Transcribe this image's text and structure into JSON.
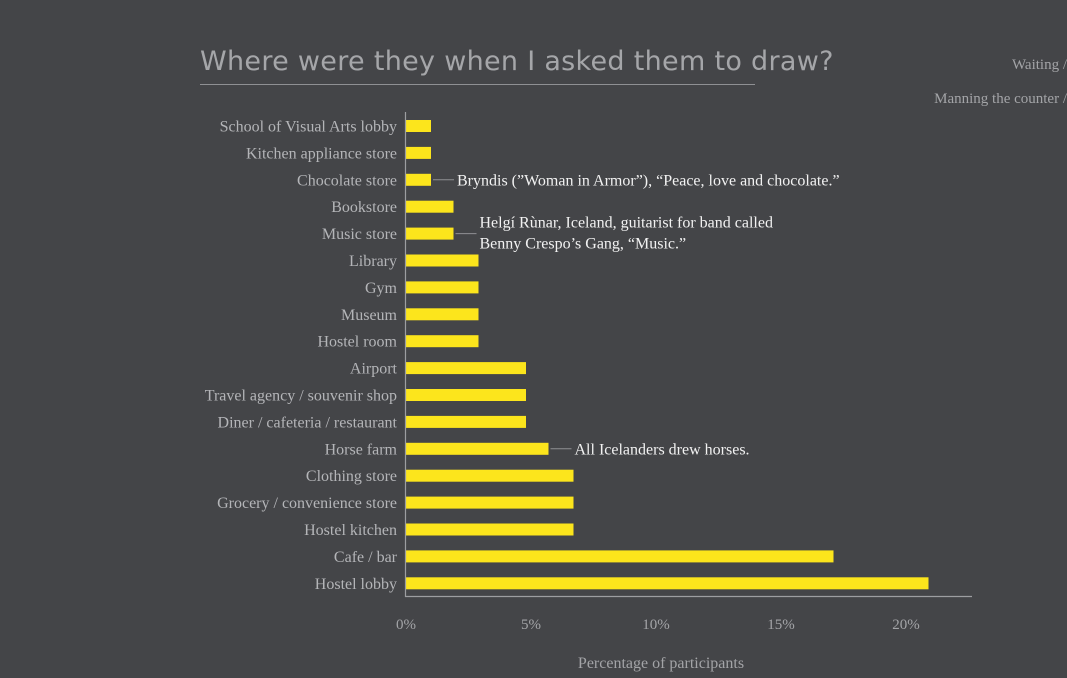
{
  "header": {
    "title": "Where were they when I asked them to draw?"
  },
  "legend_fragments": [
    "Waiting /",
    "Manning the counter /"
  ],
  "colors": {
    "background": "#444548",
    "bar": "#fce51c",
    "text": "#b4b5b8",
    "annotation": "#f2f2f2"
  },
  "chart_data": {
    "type": "bar",
    "orientation": "horizontal",
    "title": "Where were they when I asked them to draw?",
    "xlabel": "Percentage of participants",
    "ylabel": "",
    "xlim": [
      0,
      22.5
    ],
    "x_ticks": [
      "0%",
      "5%",
      "10%",
      "15%",
      "20%"
    ],
    "x_tick_values": [
      0,
      5,
      10,
      15,
      20
    ],
    "grid": false,
    "categories": [
      "School of Visual Arts lobby",
      "Kitchen appliance store",
      "Chocolate store",
      "Bookstore",
      "Music store",
      "Library",
      "Gym",
      "Museum",
      "Hostel room",
      "Airport",
      "Travel agency / souvenir shop",
      "Diner / cafeteria / restaurant",
      "Horse farm",
      "Clothing store",
      "Grocery / convenience store",
      "Hostel kitchen",
      "Cafe / bar",
      "Hostel lobby"
    ],
    "values": [
      1.0,
      1.0,
      1.0,
      1.9,
      1.9,
      2.9,
      2.9,
      2.9,
      2.9,
      4.8,
      4.8,
      4.8,
      5.7,
      6.7,
      6.7,
      6.7,
      17.1,
      20.9
    ],
    "annotations": [
      {
        "category_index": 2,
        "lines": [
          "Bryndis (”Woman in Armor”), “Peace, love and chocolate.”"
        ]
      },
      {
        "category_index": 4,
        "lines": [
          "Helgí Rùnar,  Iceland, guitarist for band called",
          "Benny Crespo’s Gang, “Music.”"
        ]
      },
      {
        "category_index": 12,
        "lines": [
          "All Icelanders drew horses."
        ]
      }
    ]
  }
}
